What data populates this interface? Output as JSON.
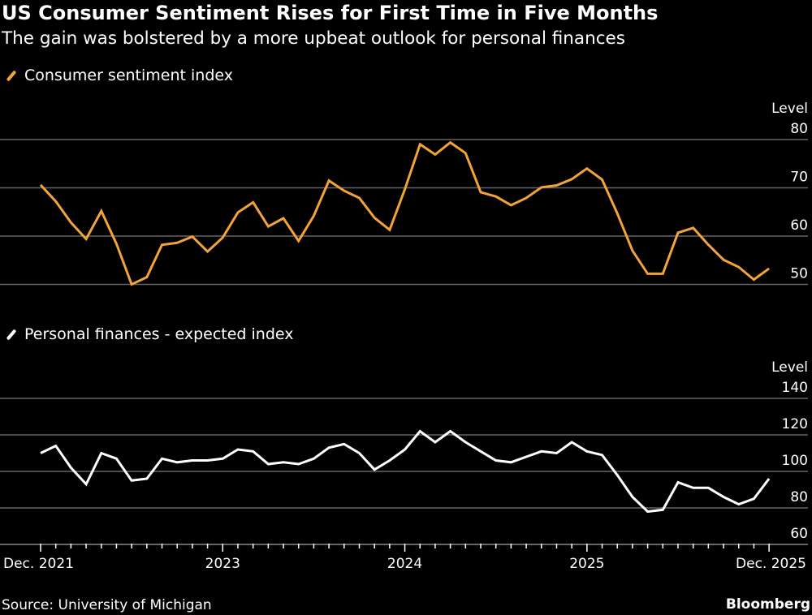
{
  "header": {
    "title": "US Consumer Sentiment Rises for First Time in Five Months",
    "subtitle": "The gain was bolstered by a more upbeat outlook for personal finances"
  },
  "footer": {
    "source": "Source: University of Michigan",
    "brand": "Bloomberg"
  },
  "colors": {
    "sentiment": "#f2a33a",
    "finances": "#ffffff",
    "grid": "#666666",
    "background": "#000000"
  },
  "chart_data": [
    {
      "type": "line",
      "legend": "Consumer sentiment index",
      "ylabel": "Level",
      "ylim": [
        45,
        80
      ],
      "yticks": [
        80,
        70,
        60,
        50
      ],
      "grid": true,
      "x_start": "Dec. 2021",
      "x_end": "Dec. 2025",
      "frequency": "monthly",
      "series": [
        {
          "name": "Consumer sentiment index",
          "values": [
            70.6,
            67.2,
            62.8,
            59.4,
            65.2,
            58.4,
            50.0,
            51.5,
            58.2,
            58.6,
            59.9,
            56.8,
            59.7,
            64.9,
            67.0,
            62.0,
            63.7,
            59.0,
            64.2,
            71.5,
            69.4,
            67.9,
            63.8,
            61.3,
            69.7,
            79.0,
            76.9,
            79.4,
            77.2,
            69.1,
            68.2,
            66.4,
            67.9,
            70.1,
            70.5,
            71.8,
            74.0,
            71.7,
            64.7,
            57.0,
            52.2,
            52.2,
            60.7,
            61.7,
            58.2,
            55.1,
            53.6,
            51.0,
            53.3
          ]
        }
      ]
    },
    {
      "type": "line",
      "legend": "Personal finances - expected index",
      "ylabel": "Level",
      "ylim": [
        60,
        140
      ],
      "yticks": [
        140,
        120,
        100,
        80,
        60
      ],
      "grid": true,
      "x_start": "Dec. 2021",
      "x_end": "Dec. 2025",
      "frequency": "monthly",
      "xtick_labels": [
        "Dec. 2021",
        "2023",
        "2024",
        "2025",
        "Dec. 2025"
      ],
      "series": [
        {
          "name": "Personal finances - expected index",
          "values": [
            110,
            114,
            102,
            93,
            110,
            107,
            95,
            96,
            107,
            105,
            106,
            106,
            107,
            112,
            111,
            104,
            105,
            104,
            107,
            113,
            115,
            110,
            101,
            106,
            112,
            122,
            116,
            122,
            116,
            111,
            106,
            105,
            108,
            111,
            110,
            116,
            111,
            109,
            98,
            86,
            78,
            79,
            94,
            91,
            91,
            86,
            82,
            85,
            96
          ]
        }
      ]
    }
  ]
}
